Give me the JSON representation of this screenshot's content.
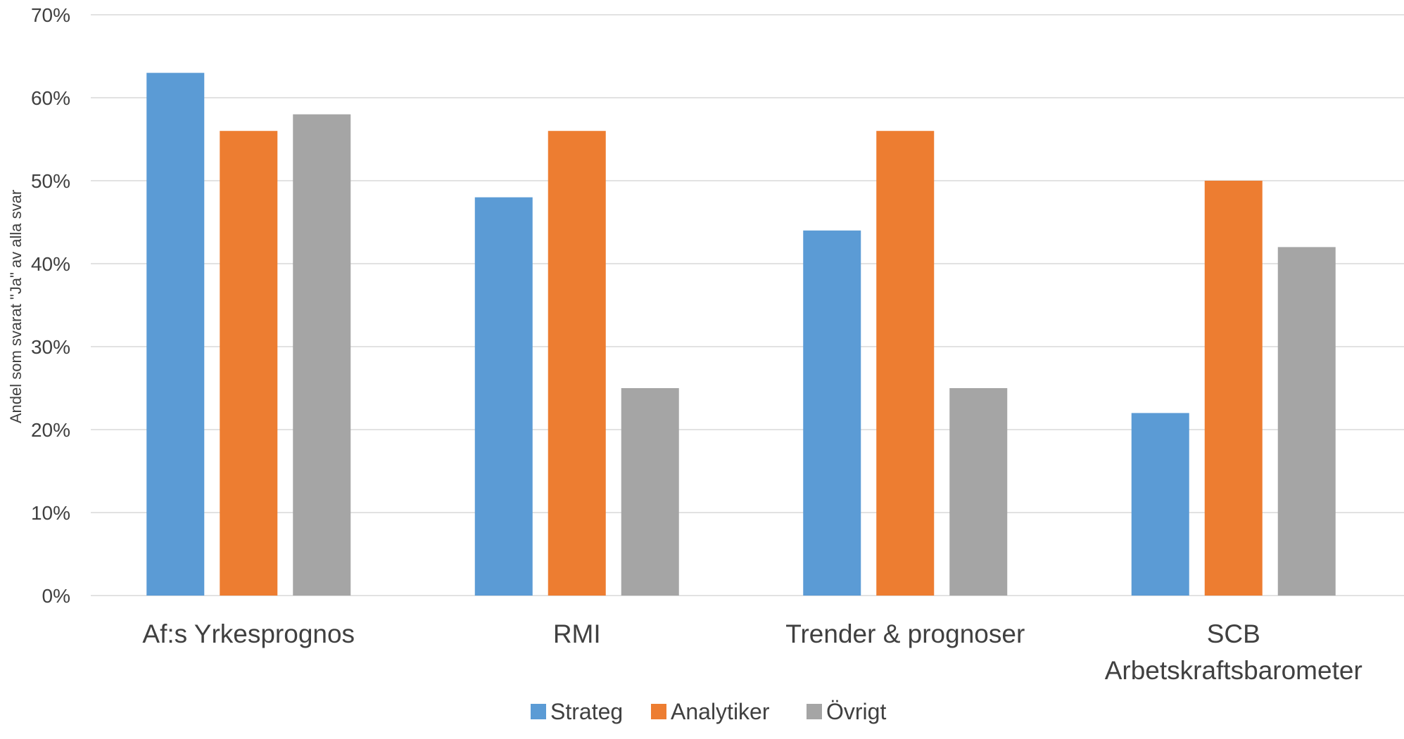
{
  "chart_data": {
    "type": "bar",
    "title": "",
    "ylabel": "Andel som svarat \"Ja\" av alla svar",
    "xlabel": "",
    "ylim": [
      0,
      0.7
    ],
    "yticks": [
      0,
      0.1,
      0.2,
      0.3,
      0.4,
      0.5,
      0.6,
      0.7
    ],
    "ytick_labels": [
      "0%",
      "10%",
      "20%",
      "30%",
      "40%",
      "50%",
      "60%",
      "70%"
    ],
    "grid": true,
    "legend_position": "bottom",
    "categories": [
      [
        "Af:s Yrkesprognos"
      ],
      [
        "RMI"
      ],
      [
        "Trender & prognoser"
      ],
      [
        "SCB",
        "Arbetskraftsbarometer"
      ]
    ],
    "series": [
      {
        "name": "Strateg",
        "color": "#5b9bd5",
        "values": [
          0.63,
          0.48,
          0.44,
          0.22
        ]
      },
      {
        "name": "Analytiker",
        "color": "#ed7d31",
        "values": [
          0.56,
          0.56,
          0.56,
          0.5
        ]
      },
      {
        "name": "Övrigt",
        "color": "#a5a5a5",
        "values": [
          0.58,
          0.25,
          0.25,
          0.42
        ]
      }
    ]
  }
}
